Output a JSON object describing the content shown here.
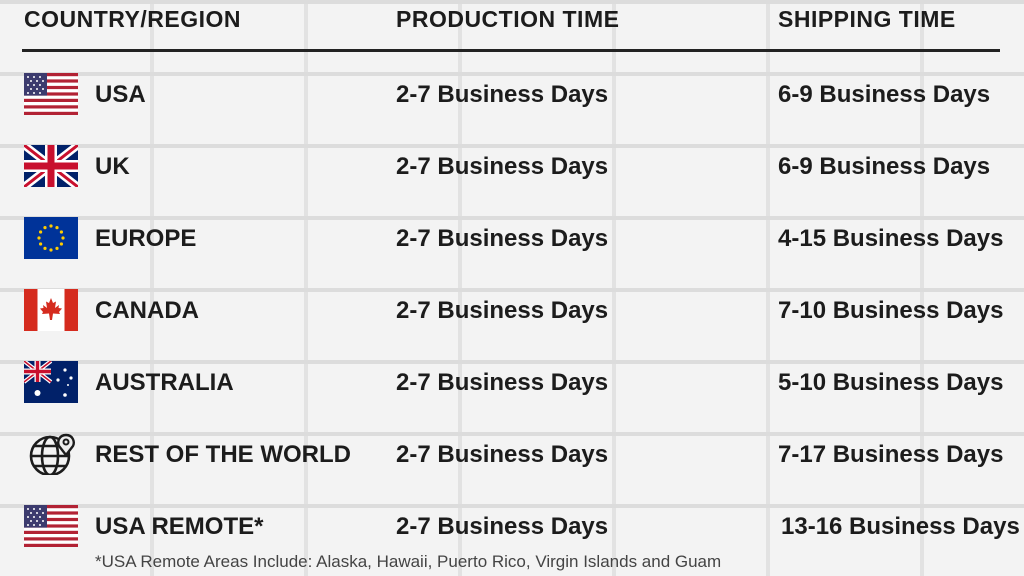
{
  "headers": {
    "country": "COUNTRY/REGION",
    "production": "PRODUCTION TIME",
    "shipping": "SHIPPING TIME"
  },
  "rows": [
    {
      "country": "USA",
      "production": "2-7 Business Days",
      "shipping": "6-9 Business Days",
      "icon": "us-flag-icon"
    },
    {
      "country": "UK",
      "production": "2-7 Business Days",
      "shipping": "6-9 Business Days",
      "icon": "uk-flag-icon"
    },
    {
      "country": "EUROPE",
      "production": "2-7 Business Days",
      "shipping": "4-15 Business Days",
      "icon": "eu-flag-icon"
    },
    {
      "country": "CANADA",
      "production": "2-7 Business Days",
      "shipping": "7-10 Business Days",
      "icon": "canada-flag-icon"
    },
    {
      "country": "AUSTRALIA",
      "production": "2-7 Business Days",
      "shipping": "5-10 Business Days",
      "icon": "australia-flag-icon"
    },
    {
      "country": "REST OF THE WORLD",
      "production": "2-7 Business Days",
      "shipping": "7-17 Business Days",
      "icon": "globe-pin-icon"
    },
    {
      "country": "USA REMOTE*",
      "production": "2-7 Business Days",
      "shipping": "13-16 Business Days",
      "icon": "us-flag-icon"
    }
  ],
  "footnote": "*USA Remote Areas Include: Alaska, Hawaii, Puerto Rico, Virgin Islands and Guam",
  "colors": {
    "text": "#1c1c1c",
    "background": "#eeeeee",
    "flag_red": "#b22234",
    "flag_blue": "#3c3b6e",
    "eu_blue": "#003399",
    "uk_blue": "#012169"
  }
}
